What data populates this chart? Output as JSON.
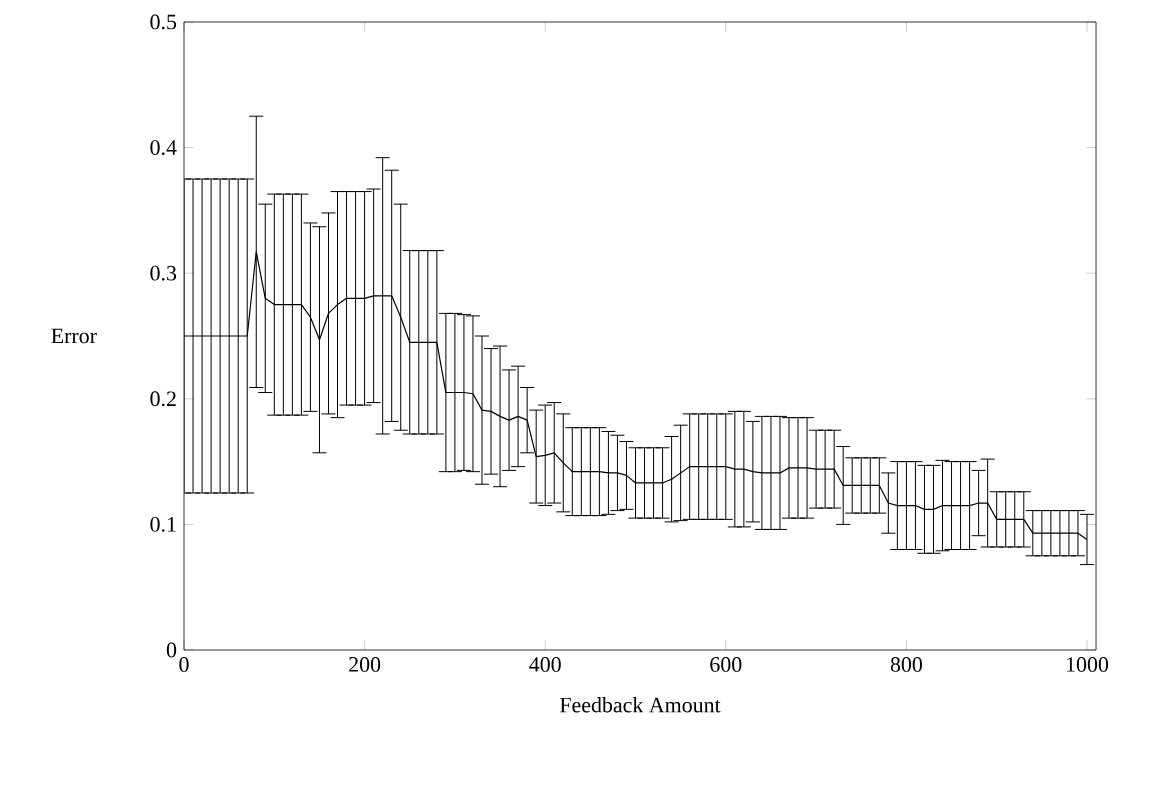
{
  "chart_data": {
    "type": "line",
    "xlabel": "Feedback Amount",
    "ylabel": "Error",
    "color": "#000000",
    "x": [
      0,
      10,
      20,
      30,
      40,
      50,
      60,
      70,
      80,
      90,
      100,
      110,
      120,
      130,
      140,
      150,
      160,
      170,
      180,
      190,
      200,
      210,
      220,
      230,
      240,
      250,
      260,
      270,
      280,
      290,
      300,
      310,
      320,
      330,
      340,
      350,
      360,
      370,
      380,
      390,
      400,
      410,
      420,
      430,
      440,
      450,
      460,
      470,
      480,
      490,
      500,
      510,
      520,
      530,
      540,
      550,
      560,
      570,
      580,
      590,
      600,
      610,
      620,
      630,
      640,
      650,
      660,
      670,
      680,
      690,
      700,
      710,
      720,
      730,
      740,
      750,
      760,
      770,
      780,
      790,
      800,
      810,
      820,
      830,
      840,
      850,
      860,
      870,
      880,
      890,
      900,
      910,
      920,
      930,
      940,
      950,
      960,
      970,
      980,
      990,
      1000
    ],
    "values": [
      0.25,
      0.25,
      0.25,
      0.25,
      0.25,
      0.25,
      0.25,
      0.25,
      0.317,
      0.28,
      0.275,
      0.275,
      0.275,
      0.275,
      0.265,
      0.247,
      0.268,
      0.275,
      0.28,
      0.28,
      0.28,
      0.282,
      0.282,
      0.282,
      0.265,
      0.245,
      0.245,
      0.245,
      0.245,
      0.205,
      0.205,
      0.205,
      0.204,
      0.191,
      0.19,
      0.186,
      0.183,
      0.186,
      0.183,
      0.154,
      0.155,
      0.157,
      0.149,
      0.142,
      0.142,
      0.142,
      0.142,
      0.141,
      0.141,
      0.139,
      0.133,
      0.133,
      0.133,
      0.133,
      0.136,
      0.141,
      0.146,
      0.146,
      0.146,
      0.146,
      0.146,
      0.144,
      0.144,
      0.142,
      0.141,
      0.141,
      0.141,
      0.145,
      0.145,
      0.145,
      0.144,
      0.144,
      0.144,
      0.131,
      0.131,
      0.131,
      0.131,
      0.131,
      0.117,
      0.115,
      0.115,
      0.115,
      0.112,
      0.112,
      0.115,
      0.115,
      0.115,
      0.115,
      0.117,
      0.117,
      0.104,
      0.104,
      0.104,
      0.104,
      0.093,
      0.093,
      0.093,
      0.093,
      0.093,
      0.093,
      0.088
    ],
    "errors": [
      0.125,
      0.125,
      0.125,
      0.125,
      0.125,
      0.125,
      0.125,
      0.125,
      0.108,
      0.075,
      0.088,
      0.088,
      0.088,
      0.088,
      0.075,
      0.09,
      0.08,
      0.09,
      0.085,
      0.085,
      0.085,
      0.085,
      0.11,
      0.1,
      0.09,
      0.073,
      0.073,
      0.073,
      0.073,
      0.063,
      0.063,
      0.062,
      0.062,
      0.059,
      0.05,
      0.056,
      0.04,
      0.04,
      0.026,
      0.037,
      0.04,
      0.04,
      0.039,
      0.035,
      0.035,
      0.035,
      0.035,
      0.033,
      0.03,
      0.027,
      0.028,
      0.028,
      0.028,
      0.028,
      0.034,
      0.038,
      0.042,
      0.042,
      0.042,
      0.042,
      0.042,
      0.046,
      0.046,
      0.04,
      0.045,
      0.045,
      0.045,
      0.04,
      0.04,
      0.04,
      0.031,
      0.031,
      0.031,
      0.031,
      0.022,
      0.022,
      0.022,
      0.022,
      0.024,
      0.035,
      0.035,
      0.035,
      0.035,
      0.035,
      0.036,
      0.035,
      0.035,
      0.035,
      0.026,
      0.035,
      0.022,
      0.022,
      0.022,
      0.022,
      0.018,
      0.018,
      0.018,
      0.018,
      0.018,
      0.018,
      0.02
    ],
    "xlim": [
      0,
      1010
    ],
    "ylim": [
      0,
      0.5
    ],
    "xticks": [
      0,
      200,
      400,
      600,
      800,
      1000
    ],
    "yticks": [
      0,
      0.1,
      0.2,
      0.3,
      0.4,
      0.5
    ],
    "line_style": "solid"
  }
}
